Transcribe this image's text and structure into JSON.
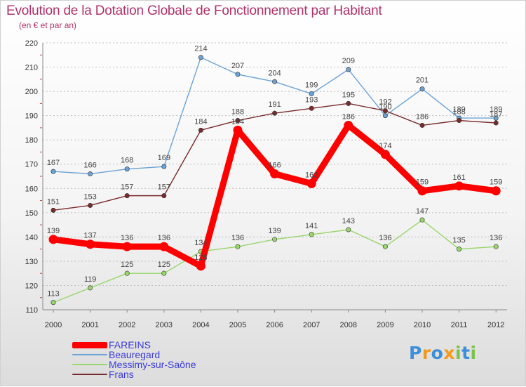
{
  "title": "Evolution de la Dotation Globale de Fonctionnement par Habitant",
  "subtitle": "(en € et par an)",
  "chart_data": {
    "type": "line",
    "title": "Evolution de la Dotation Globale de Fonctionnement par Habitant",
    "subtitle": "(en € et par an)",
    "xlabel": "",
    "ylabel": "",
    "ylim": [
      110,
      220
    ],
    "yticks": [
      110,
      120,
      130,
      140,
      150,
      160,
      170,
      180,
      190,
      200,
      210,
      220
    ],
    "grid": "horizontal dashed",
    "categories": [
      "2000",
      "2001",
      "2002",
      "2003",
      "2004",
      "2005",
      "2006",
      "2007",
      "2008",
      "2009",
      "2010",
      "2011",
      "2012"
    ],
    "series": [
      {
        "name": "FAREINS",
        "color": "#ff0000",
        "values": [
          139,
          137,
          136,
          136,
          128,
          184,
          166,
          162,
          186,
          174,
          159,
          161,
          159
        ]
      },
      {
        "name": "Beauregard",
        "color": "#6ba3d6",
        "values": [
          167,
          166,
          168,
          169,
          214,
          207,
          204,
          199,
          209,
          190,
          201,
          189,
          189
        ]
      },
      {
        "name": "Messimy-sur-Saône",
        "color": "#99d66b",
        "values": [
          113,
          119,
          125,
          125,
          134,
          136,
          139,
          141,
          143,
          136,
          147,
          135,
          136
        ]
      },
      {
        "name": "Frans",
        "color": "#7a2b2b",
        "values": [
          151,
          153,
          157,
          157,
          184,
          188,
          191,
          193,
          195,
          192,
          186,
          188,
          187
        ]
      }
    ],
    "legend_position": "bottom-left"
  },
  "logo": {
    "letters": [
      {
        "ch": "P",
        "color": "#3c8fd8"
      },
      {
        "ch": "r",
        "color": "#f39a1e"
      },
      {
        "ch": "o",
        "color": "#3c8fd8"
      },
      {
        "ch": "x",
        "color": "#f39a1e"
      },
      {
        "ch": "i",
        "color": "#7cc24a"
      },
      {
        "ch": "t",
        "color": "#3c8fd8"
      },
      {
        "ch": "i",
        "color": "#7cc24a"
      }
    ]
  }
}
